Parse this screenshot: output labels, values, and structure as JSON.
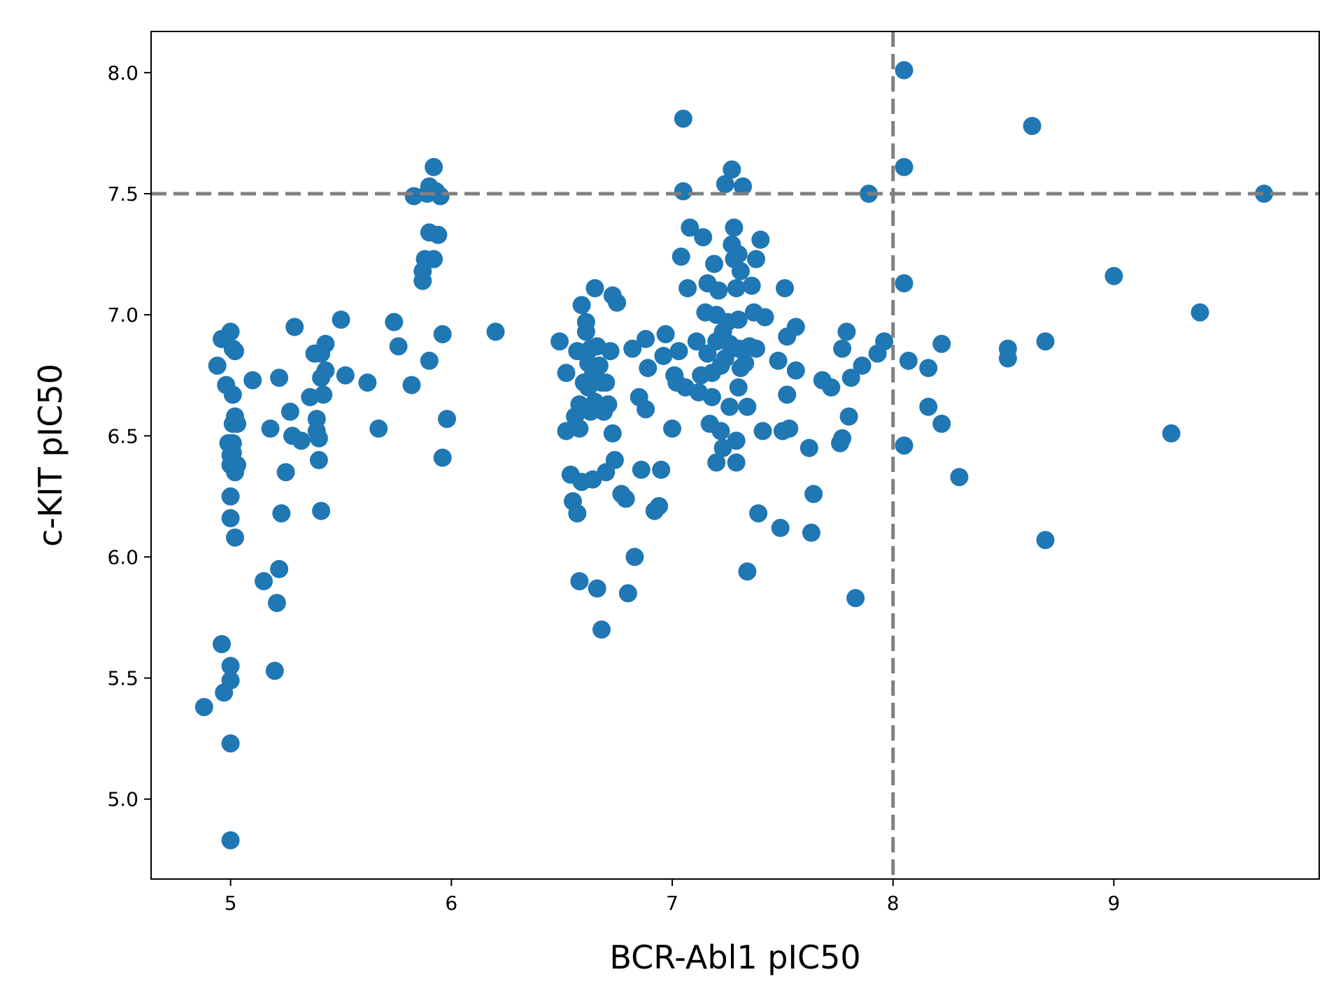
{
  "chart_data": {
    "type": "scatter",
    "xlabel": "BCR-Abl1 pIC50",
    "ylabel": "c-KIT pIC50",
    "xlim": [
      4.64,
      9.93
    ],
    "ylim": [
      4.67,
      8.17
    ],
    "x_ticks": [
      5,
      6,
      7,
      8,
      9
    ],
    "y_ticks": [
      5.0,
      5.5,
      6.0,
      6.5,
      7.0,
      7.5,
      8.0
    ],
    "x_tick_labels": [
      "5",
      "6",
      "7",
      "8",
      "9"
    ],
    "y_tick_labels": [
      "5.0",
      "5.5",
      "6.0",
      "6.5",
      "7.0",
      "7.5",
      "8.0"
    ],
    "grid": false,
    "marker_color": "#1f77b4",
    "reference_lines": [
      {
        "orientation": "horizontal",
        "value": 7.5,
        "style": "dashed",
        "color": "#808080"
      },
      {
        "orientation": "vertical",
        "value": 8.0,
        "style": "dashed",
        "color": "#808080"
      }
    ],
    "series": [
      {
        "points": [
          [
            4.88,
            5.38
          ],
          [
            4.96,
            5.64
          ],
          [
            4.97,
            5.44
          ],
          [
            5.0,
            5.49
          ],
          [
            5.0,
            5.55
          ],
          [
            5.0,
            5.23
          ],
          [
            5.0,
            4.83
          ],
          [
            4.94,
            6.79
          ],
          [
            4.96,
            6.9
          ],
          [
            4.98,
            6.71
          ],
          [
            5.0,
            6.93
          ],
          [
            5.01,
            6.86
          ],
          [
            5.02,
            6.85
          ],
          [
            5.01,
            6.67
          ],
          [
            5.02,
            6.58
          ],
          [
            5.01,
            6.55
          ],
          [
            5.03,
            6.55
          ],
          [
            4.99,
            6.47
          ],
          [
            5.01,
            6.47
          ],
          [
            5.0,
            6.42
          ],
          [
            5.01,
            6.43
          ],
          [
            5.0,
            6.38
          ],
          [
            5.02,
            6.35
          ],
          [
            5.03,
            6.38
          ],
          [
            5.0,
            6.25
          ],
          [
            5.0,
            6.16
          ],
          [
            5.02,
            6.08
          ],
          [
            5.1,
            6.73
          ],
          [
            5.15,
            5.9
          ],
          [
            5.18,
            6.53
          ],
          [
            5.2,
            5.53
          ],
          [
            5.21,
            5.81
          ],
          [
            5.22,
            5.95
          ],
          [
            5.22,
            6.74
          ],
          [
            5.23,
            6.18
          ],
          [
            5.25,
            6.35
          ],
          [
            5.27,
            6.6
          ],
          [
            5.28,
            6.5
          ],
          [
            5.29,
            6.95
          ],
          [
            5.32,
            6.48
          ],
          [
            5.36,
            6.66
          ],
          [
            5.38,
            6.84
          ],
          [
            5.39,
            6.52
          ],
          [
            5.39,
            6.57
          ],
          [
            5.4,
            6.49
          ],
          [
            5.4,
            6.4
          ],
          [
            5.41,
            6.74
          ],
          [
            5.41,
            6.84
          ],
          [
            5.41,
            6.19
          ],
          [
            5.42,
            6.67
          ],
          [
            5.43,
            6.88
          ],
          [
            5.43,
            6.77
          ],
          [
            5.5,
            6.98
          ],
          [
            5.52,
            6.75
          ],
          [
            5.62,
            6.72
          ],
          [
            5.67,
            6.53
          ],
          [
            5.74,
            6.97
          ],
          [
            5.76,
            6.87
          ],
          [
            5.82,
            6.71
          ],
          [
            5.83,
            7.49
          ],
          [
            5.87,
            7.18
          ],
          [
            5.87,
            7.14
          ],
          [
            5.88,
            7.23
          ],
          [
            5.89,
            7.5
          ],
          [
            5.9,
            7.53
          ],
          [
            5.9,
            7.34
          ],
          [
            5.9,
            6.81
          ],
          [
            5.92,
            7.61
          ],
          [
            5.92,
            7.23
          ],
          [
            5.93,
            7.51
          ],
          [
            5.94,
            7.33
          ],
          [
            5.95,
            7.49
          ],
          [
            5.96,
            6.92
          ],
          [
            5.96,
            6.41
          ],
          [
            5.98,
            6.57
          ],
          [
            6.2,
            6.93
          ],
          [
            6.49,
            6.89
          ],
          [
            6.52,
            6.76
          ],
          [
            6.52,
            6.52
          ],
          [
            6.54,
            6.34
          ],
          [
            6.55,
            6.23
          ],
          [
            6.56,
            6.58
          ],
          [
            6.57,
            6.18
          ],
          [
            6.57,
            6.85
          ],
          [
            6.58,
            5.9
          ],
          [
            6.58,
            6.63
          ],
          [
            6.58,
            6.53
          ],
          [
            6.59,
            6.31
          ],
          [
            6.59,
            7.04
          ],
          [
            6.6,
            6.72
          ],
          [
            6.61,
            6.97
          ],
          [
            6.61,
            6.93
          ],
          [
            6.62,
            6.8
          ],
          [
            6.62,
            6.7
          ],
          [
            6.63,
            6.86
          ],
          [
            6.63,
            6.6
          ],
          [
            6.64,
            6.32
          ],
          [
            6.64,
            6.75
          ],
          [
            6.65,
            7.11
          ],
          [
            6.65,
            6.64
          ],
          [
            6.66,
            5.87
          ],
          [
            6.66,
            6.87
          ],
          [
            6.67,
            6.79
          ],
          [
            6.68,
            5.7
          ],
          [
            6.68,
            6.72
          ],
          [
            6.69,
            6.6
          ],
          [
            6.7,
            6.72
          ],
          [
            6.7,
            6.35
          ],
          [
            6.71,
            6.63
          ],
          [
            6.72,
            6.85
          ],
          [
            6.73,
            7.08
          ],
          [
            6.73,
            6.51
          ],
          [
            6.74,
            6.4
          ],
          [
            6.75,
            7.05
          ],
          [
            6.77,
            6.26
          ],
          [
            6.79,
            6.24
          ],
          [
            6.8,
            5.85
          ],
          [
            6.82,
            6.86
          ],
          [
            6.83,
            6.0
          ],
          [
            6.85,
            6.66
          ],
          [
            6.86,
            6.36
          ],
          [
            6.88,
            6.61
          ],
          [
            6.88,
            6.9
          ],
          [
            6.89,
            6.78
          ],
          [
            6.92,
            6.19
          ],
          [
            6.94,
            6.21
          ],
          [
            6.95,
            6.36
          ],
          [
            6.96,
            6.83
          ],
          [
            6.97,
            6.92
          ],
          [
            7.0,
            6.53
          ],
          [
            7.01,
            6.75
          ],
          [
            7.02,
            6.72
          ],
          [
            7.03,
            6.85
          ],
          [
            7.04,
            7.24
          ],
          [
            7.05,
            7.51
          ],
          [
            7.05,
            7.81
          ],
          [
            7.06,
            6.7
          ],
          [
            7.07,
            7.11
          ],
          [
            7.08,
            7.36
          ],
          [
            7.11,
            6.89
          ],
          [
            7.12,
            6.68
          ],
          [
            7.13,
            6.75
          ],
          [
            7.14,
            7.32
          ],
          [
            7.15,
            7.01
          ],
          [
            7.16,
            6.84
          ],
          [
            7.16,
            7.13
          ],
          [
            7.17,
            6.55
          ],
          [
            7.18,
            6.76
          ],
          [
            7.18,
            6.66
          ],
          [
            7.19,
            7.21
          ],
          [
            7.2,
            7.0
          ],
          [
            7.2,
            6.89
          ],
          [
            7.2,
            6.39
          ],
          [
            7.21,
            7.1
          ],
          [
            7.22,
            6.79
          ],
          [
            7.22,
            6.52
          ],
          [
            7.23,
            6.93
          ],
          [
            7.23,
            6.45
          ],
          [
            7.24,
            7.54
          ],
          [
            7.24,
            6.82
          ],
          [
            7.25,
            6.97
          ],
          [
            7.26,
            6.88
          ],
          [
            7.26,
            6.62
          ],
          [
            7.27,
            7.29
          ],
          [
            7.27,
            7.6
          ],
          [
            7.28,
            7.36
          ],
          [
            7.28,
            7.23
          ],
          [
            7.29,
            7.11
          ],
          [
            7.29,
            6.48
          ],
          [
            7.29,
            6.39
          ],
          [
            7.3,
            7.25
          ],
          [
            7.3,
            6.98
          ],
          [
            7.3,
            6.86
          ],
          [
            7.3,
            6.7
          ],
          [
            7.31,
            7.18
          ],
          [
            7.31,
            6.78
          ],
          [
            7.32,
            7.53
          ],
          [
            7.33,
            6.8
          ],
          [
            7.33,
            6.86
          ],
          [
            7.34,
            6.62
          ],
          [
            7.34,
            5.94
          ],
          [
            7.35,
            6.87
          ],
          [
            7.36,
            7.12
          ],
          [
            7.37,
            7.01
          ],
          [
            7.38,
            6.86
          ],
          [
            7.38,
            7.23
          ],
          [
            7.39,
            6.18
          ],
          [
            7.4,
            7.31
          ],
          [
            7.41,
            6.52
          ],
          [
            7.42,
            6.99
          ],
          [
            7.48,
            6.81
          ],
          [
            7.49,
            6.12
          ],
          [
            7.5,
            6.52
          ],
          [
            7.51,
            7.11
          ],
          [
            7.52,
            6.91
          ],
          [
            7.52,
            6.67
          ],
          [
            7.53,
            6.53
          ],
          [
            7.56,
            6.95
          ],
          [
            7.56,
            6.77
          ],
          [
            7.62,
            6.45
          ],
          [
            7.63,
            6.1
          ],
          [
            7.64,
            6.26
          ],
          [
            7.68,
            6.73
          ],
          [
            7.72,
            6.7
          ],
          [
            7.76,
            6.47
          ],
          [
            7.77,
            6.86
          ],
          [
            7.77,
            6.49
          ],
          [
            7.79,
            6.93
          ],
          [
            7.8,
            6.58
          ],
          [
            7.81,
            6.74
          ],
          [
            7.83,
            5.83
          ],
          [
            7.86,
            6.79
          ],
          [
            7.89,
            7.5
          ],
          [
            7.93,
            6.84
          ],
          [
            7.96,
            6.89
          ],
          [
            8.05,
            8.01
          ],
          [
            8.05,
            7.61
          ],
          [
            8.05,
            7.13
          ],
          [
            8.05,
            6.46
          ],
          [
            8.07,
            6.81
          ],
          [
            8.16,
            6.78
          ],
          [
            8.16,
            6.62
          ],
          [
            8.22,
            6.88
          ],
          [
            8.22,
            6.55
          ],
          [
            8.3,
            6.33
          ],
          [
            8.52,
            6.86
          ],
          [
            8.52,
            6.82
          ],
          [
            8.63,
            7.78
          ],
          [
            8.69,
            6.07
          ],
          [
            8.69,
            6.89
          ],
          [
            9.0,
            7.16
          ],
          [
            9.26,
            6.51
          ],
          [
            9.39,
            7.01
          ],
          [
            9.68,
            7.5
          ]
        ]
      }
    ]
  }
}
